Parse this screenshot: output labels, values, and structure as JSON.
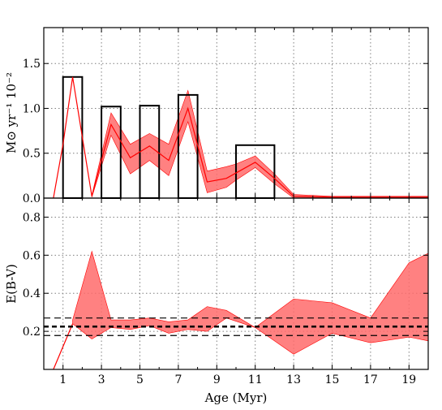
{
  "chart_data": [
    {
      "type": "line",
      "panel": "top",
      "title": "",
      "xlabel": "",
      "ylabel": "M⊙ yr⁻¹ 10⁻²",
      "xlim": [
        0,
        20
      ],
      "ylim": [
        0,
        1.9
      ],
      "grid": true,
      "xticks": [
        1,
        3,
        5,
        7,
        9,
        11,
        13,
        15,
        17,
        19
      ],
      "xtick_labels": [
        "",
        "",
        "",
        "",
        "",
        "",
        "",
        "",
        "",
        ""
      ],
      "yticks": [
        0.0,
        0.5,
        1.0,
        1.5
      ],
      "ytick_labels": [
        "0.0",
        "0.5",
        "1.0",
        "1.5"
      ],
      "colors": {
        "line": "#ff0000",
        "band": "#ff6b6b",
        "bars": "#000000"
      },
      "bars": [
        {
          "x0": 1.0,
          "x1": 2.0,
          "value": 1.35
        },
        {
          "x0": 3.0,
          "x1": 4.0,
          "value": 1.02
        },
        {
          "x0": 5.0,
          "x1": 6.0,
          "value": 1.03
        },
        {
          "x0": 7.0,
          "x1": 8.0,
          "value": 1.15
        },
        {
          "x0": 10.0,
          "x1": 12.0,
          "value": 0.59
        }
      ],
      "line": {
        "x": [
          0.5,
          1.0,
          1.5,
          2.5,
          3.5,
          4.5,
          5.5,
          6.5,
          7.5,
          8.5,
          9.5,
          10.0,
          11.0,
          12.0,
          13.0,
          15.0,
          17.0,
          19.0,
          20.0
        ],
        "y": [
          0.0,
          0.6,
          1.35,
          0.02,
          0.82,
          0.45,
          0.58,
          0.42,
          1.0,
          0.18,
          0.22,
          0.28,
          0.4,
          0.22,
          0.02,
          0.01,
          0.01,
          0.01,
          0.01
        ]
      },
      "band": {
        "x": [
          2.5,
          3.5,
          4.5,
          5.5,
          6.5,
          7.5,
          8.5,
          9.5,
          10.0,
          11.0,
          12.0,
          13.0,
          15.0,
          17.0,
          19.0,
          20.0
        ],
        "lower": [
          0.01,
          0.7,
          0.27,
          0.42,
          0.25,
          0.85,
          0.06,
          0.12,
          0.2,
          0.34,
          0.16,
          0.0,
          0.0,
          0.0,
          0.0,
          0.0
        ],
        "upper": [
          0.03,
          0.95,
          0.6,
          0.72,
          0.6,
          1.2,
          0.3,
          0.35,
          0.38,
          0.47,
          0.27,
          0.04,
          0.02,
          0.02,
          0.02,
          0.02
        ]
      }
    },
    {
      "type": "area",
      "panel": "bottom",
      "title": "",
      "xlabel": "Age (Myr)",
      "ylabel": "E(B-V)",
      "xlim": [
        0,
        20
      ],
      "ylim": [
        0.0,
        0.9
      ],
      "grid": true,
      "xticks": [
        1,
        3,
        5,
        7,
        9,
        11,
        13,
        15,
        17,
        19
      ],
      "xtick_labels": [
        "1",
        "3",
        "5",
        "7",
        "9",
        "11",
        "13",
        "15",
        "17",
        "19"
      ],
      "yticks": [
        0.2,
        0.4,
        0.6,
        0.8
      ],
      "ytick_labels": [
        "0.2",
        "0.4",
        "0.6",
        "0.8"
      ],
      "colors": {
        "line": "#ff0000",
        "band": "#ff6b6b",
        "hlines": "#000000"
      },
      "line": {
        "x": [
          0.5,
          1.5
        ],
        "y": [
          0.0,
          0.24
        ]
      },
      "band": {
        "x": [
          1.5,
          2.5,
          3.5,
          4.5,
          5.5,
          6.5,
          7.5,
          8.5,
          9.5,
          11.0,
          13.0,
          15.0,
          17.0,
          19.0,
          20.0
        ],
        "lower": [
          0.24,
          0.16,
          0.22,
          0.21,
          0.23,
          0.19,
          0.21,
          0.2,
          0.27,
          0.22,
          0.08,
          0.19,
          0.14,
          0.17,
          0.15
        ],
        "upper": [
          0.26,
          0.62,
          0.26,
          0.26,
          0.27,
          0.25,
          0.26,
          0.33,
          0.31,
          0.22,
          0.37,
          0.35,
          0.27,
          0.56,
          0.61
        ]
      },
      "hlines": [
        {
          "y": 0.225,
          "style": "dashed",
          "weight": "bold"
        },
        {
          "y": 0.27,
          "style": "dashed",
          "weight": "normal"
        },
        {
          "y": 0.178,
          "style": "dashed",
          "weight": "normal"
        }
      ]
    }
  ]
}
